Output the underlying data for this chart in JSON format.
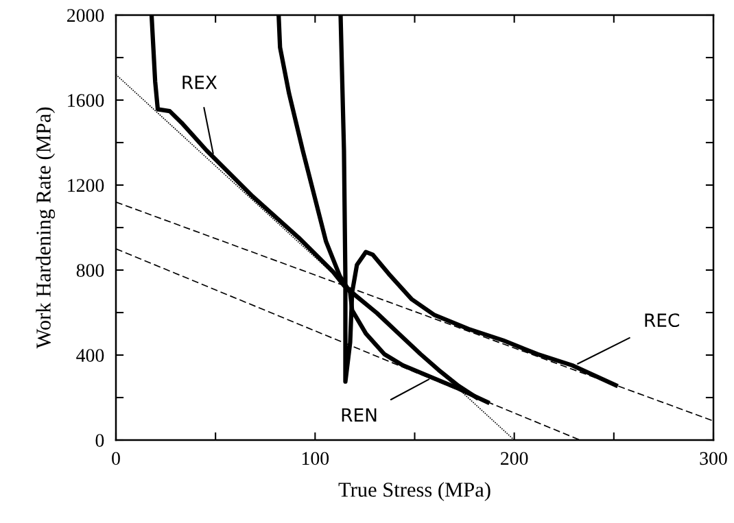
{
  "chart_data": {
    "type": "line",
    "xlabel": "True Stress (MPa)",
    "ylabel": "Work Hardening Rate (MPa)",
    "xlim": [
      0,
      300
    ],
    "ylim": [
      0,
      2000
    ],
    "xticks": [
      0,
      {
        "value": 50,
        "label": null
      },
      100,
      {
        "value": 150,
        "label": null
      },
      200,
      {
        "value": 250,
        "label": null
      },
      300
    ],
    "yticks": [
      0,
      {
        "value": 200,
        "label": null
      },
      400,
      {
        "value": 600,
        "label": null
      },
      800,
      {
        "value": 1000,
        "label": null
      },
      1200,
      {
        "value": 1400,
        "label": null
      },
      1600,
      {
        "value": 1800,
        "label": null
      },
      2000
    ],
    "grid": false,
    "legend": false,
    "marker": "none",
    "series": [
      {
        "color": "#000000",
        "line_style": "solid",
        "x": [
          17.9,
          19.7,
          21,
          27,
          33,
          45.5,
          68.6,
          91.7,
          109,
          114.5,
          121,
          131,
          142,
          153,
          162,
          172,
          181
        ],
        "values": [
          2000,
          1687,
          1557,
          1548,
          1493,
          1363,
          1147,
          953,
          792,
          727,
          675,
          598,
          501,
          404,
          330,
          255,
          200
        ]
      },
      {
        "color": "#000000",
        "line_style": "solid",
        "x": [
          81.7,
          82.4,
          86.9,
          93.8,
          99.7,
          105.5,
          112.4,
          117.6,
          118.6,
          125.5,
          134.8,
          144,
          158,
          172,
          186.6
        ],
        "values": [
          2000,
          1848,
          1632,
          1363,
          1147,
          934,
          772,
          695,
          611,
          501,
          404,
          352,
          297,
          242,
          178
        ]
      },
      {
        "color": "#000000",
        "line_style": "solid",
        "x": [
          112.8,
          114.5,
          115.2,
          115.2,
          117.6,
          118.6,
          121,
          125.5,
          129,
          137,
          148.6,
          160,
          177,
          194.5,
          211.7,
          229,
          251
        ],
        "values": [
          2000,
          1363,
          772,
          275,
          459,
          695,
          824,
          885,
          872,
          782,
          662,
          588,
          523,
          469,
          404,
          352,
          258
        ]
      },
      {
        "color": "#000000",
        "line_style": "dotted",
        "x": [
          0,
          200
        ],
        "values": [
          1720,
          0
        ]
      },
      {
        "color": "#000000",
        "line_style": "dashed",
        "x": [
          0,
          300
        ],
        "values": [
          1120,
          90
        ]
      },
      {
        "color": "#000000",
        "line_style": "dashed",
        "x": [
          0,
          233
        ],
        "values": [
          900,
          0
        ]
      }
    ],
    "annotations": [
      {
        "text": "REX",
        "x": 49,
        "y": 1340
      },
      {
        "text": "REN",
        "x": 158,
        "y": 290
      },
      {
        "text": "REC",
        "x": 231,
        "y": 355
      }
    ]
  }
}
